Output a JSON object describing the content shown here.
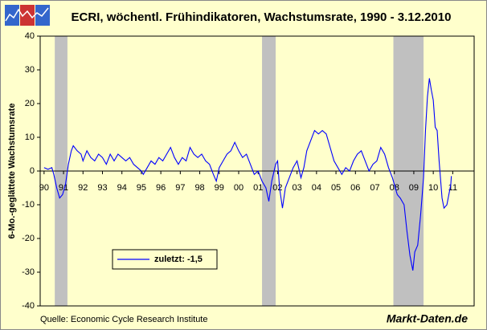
{
  "chart_data": {
    "type": "line",
    "title": "ECRI, wöchentl. Frühindikatoren, Wachstumsrate, 1990 - 3.12.2010",
    "y_label": "6-Mo.-geglättete Wachstumsrate",
    "source": "Quelle: Economic Cycle Research Institute",
    "brand": "Markt-Daten.de",
    "xlim": [
      1989.8,
      2012.1
    ],
    "ylim": [
      -40,
      40
    ],
    "yticks": [
      -40,
      -30,
      -20,
      -10,
      0,
      10,
      20,
      30,
      40
    ],
    "xticks": [
      {
        "value": 1990,
        "label": "90"
      },
      {
        "value": 1991,
        "label": "91"
      },
      {
        "value": 1992,
        "label": "92"
      },
      {
        "value": 1993,
        "label": "93"
      },
      {
        "value": 1994,
        "label": "94"
      },
      {
        "value": 1995,
        "label": "95"
      },
      {
        "value": 1996,
        "label": "96"
      },
      {
        "value": 1997,
        "label": "97"
      },
      {
        "value": 1998,
        "label": "98"
      },
      {
        "value": 1999,
        "label": "99"
      },
      {
        "value": 2000,
        "label": "00"
      },
      {
        "value": 2001,
        "label": "01"
      },
      {
        "value": 2002,
        "label": "02"
      },
      {
        "value": 2003,
        "label": "03"
      },
      {
        "value": 2004,
        "label": "04"
      },
      {
        "value": 2005,
        "label": "05"
      },
      {
        "value": 2006,
        "label": "06"
      },
      {
        "value": 2007,
        "label": "07"
      },
      {
        "value": 2008,
        "label": "08"
      },
      {
        "value": 2009,
        "label": "09"
      },
      {
        "value": 2010,
        "label": "10"
      },
      {
        "value": 2011,
        "label": "11"
      }
    ],
    "recessions": [
      [
        1990.55,
        1991.2
      ],
      [
        2001.2,
        2001.9
      ],
      [
        2007.95,
        2009.5
      ]
    ],
    "recession_color": "#c0c0c0",
    "x": [
      1990.0,
      1990.2,
      1990.4,
      1990.5,
      1990.65,
      1990.8,
      1990.95,
      1991.1,
      1991.25,
      1991.4,
      1991.5,
      1991.7,
      1991.9,
      1992.0,
      1992.2,
      1992.4,
      1992.6,
      1992.8,
      1993.0,
      1993.2,
      1993.4,
      1993.6,
      1993.8,
      1994.0,
      1994.2,
      1994.4,
      1994.6,
      1994.8,
      1995.0,
      1995.1,
      1995.3,
      1995.5,
      1995.7,
      1995.9,
      1996.1,
      1996.3,
      1996.5,
      1996.7,
      1996.9,
      1997.1,
      1997.3,
      1997.5,
      1997.7,
      1997.9,
      1998.1,
      1998.3,
      1998.5,
      1998.7,
      1998.85,
      1999.0,
      1999.2,
      1999.4,
      1999.6,
      1999.8,
      2000.0,
      2000.2,
      2000.4,
      2000.6,
      2000.8,
      2001.0,
      2001.2,
      2001.4,
      2001.55,
      2001.7,
      2001.9,
      2002.0,
      2002.1,
      2002.25,
      2002.4,
      2002.6,
      2002.8,
      2003.0,
      2003.2,
      2003.35,
      2003.5,
      2003.7,
      2003.9,
      2004.1,
      2004.3,
      2004.5,
      2004.7,
      2004.9,
      2005.1,
      2005.3,
      2005.5,
      2005.7,
      2005.9,
      2006.1,
      2006.3,
      2006.5,
      2006.7,
      2006.9,
      2007.1,
      2007.3,
      2007.5,
      2007.7,
      2007.9,
      2008.0,
      2008.15,
      2008.3,
      2008.5,
      2008.65,
      2008.8,
      2008.95,
      2009.05,
      2009.2,
      2009.35,
      2009.5,
      2009.6,
      2009.7,
      2009.8,
      2009.9,
      2010.0,
      2010.1,
      2010.2,
      2010.3,
      2010.45,
      2010.55,
      2010.7,
      2010.8,
      2010.9,
      2010.93
    ],
    "series": [
      {
        "name": "zuletzt: -1,5",
        "color": "#0000ff",
        "values": [
          1,
          0.5,
          1,
          -1,
          -5,
          -8,
          -7,
          -4,
          2,
          6,
          7.5,
          6,
          5,
          3,
          6,
          4,
          3,
          5,
          4,
          2,
          5,
          3,
          5,
          4,
          3,
          4,
          2,
          1,
          0,
          -1,
          1,
          3,
          2,
          4,
          3,
          5,
          7,
          4,
          2,
          4,
          3,
          7,
          5,
          4,
          5,
          3,
          2,
          -1,
          -3,
          1,
          3,
          5,
          6,
          8.5,
          6,
          4,
          5,
          2,
          -1,
          0,
          -3,
          -5,
          -9,
          -3,
          2,
          3,
          -5,
          -11,
          -5,
          -2,
          1,
          3,
          -2,
          1,
          6,
          9,
          12,
          11,
          12,
          11,
          7,
          3,
          1,
          -1,
          1,
          0,
          3,
          5,
          6,
          3,
          0,
          2,
          3,
          7,
          5,
          1,
          -2,
          -4,
          -7,
          -8,
          -10,
          -18,
          -25,
          -29.5,
          -24,
          -22,
          -13,
          -2,
          12,
          22,
          27.5,
          24,
          21,
          13,
          12,
          3,
          -8,
          -11,
          -10,
          -7,
          -4,
          -1.5
        ]
      }
    ]
  }
}
